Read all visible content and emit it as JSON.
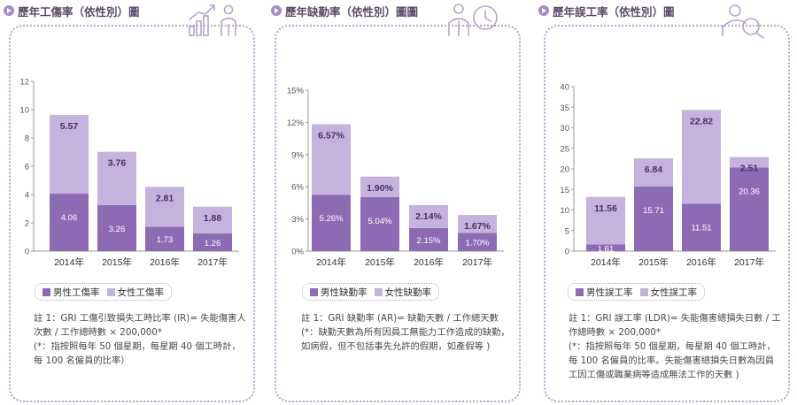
{
  "colors": {
    "male": "#8d6bb4",
    "female": "#c4b3dc",
    "accent": "#a58dc6"
  },
  "panels": [
    {
      "title": "歷年工傷率（依性別）圖",
      "icon": "growth-chart-person-icon",
      "legend": [
        "男性工傷率",
        "女性工傷率"
      ],
      "note": [
        "註 1：GRI 工傷引致損失工時比率 (IR)= 失能傷害人",
        "次數 / 工作總時數 × 200,000*",
        "(*：指按照每年 50 個星期，每星期 40 個工時計，",
        "每 100 名僱員的比率）"
      ]
    },
    {
      "title": "歷年缺勤率（依性別）圖圖",
      "icon": "person-clock-icon",
      "legend": [
        "男性缺勤率",
        "女性缺勤率"
      ],
      "note": [
        "註 1：GRI 缺勤率 (AR)= 缺勤天數 / 工作總天數",
        "(*：缺勤天數為所有因員工無能力工作造成的缺勤，",
        "如病假，但不包括事先允許的假期，如產假等 )"
      ]
    },
    {
      "title": "歷年誤工率（依性別）圖",
      "icon": "person-search-icon",
      "legend": [
        "男性誤工率",
        "女性誤工率"
      ],
      "note": [
        "註 1：GRI 誤工率 (LDR)= 失能傷害總損失日數 / 工",
        "作總時數 × 200,000*",
        "(*：指按照每年 50 個星期，每星期 40 個工時計，",
        "每 100 名僱員的比率。失能傷害總損失日數為因員",
        "工因工傷或職業病等造成無法工作的天數 )"
      ]
    }
  ],
  "chart_data": [
    {
      "type": "bar",
      "stacked": true,
      "categories": [
        "2014年",
        "2015年",
        "2016年",
        "2017年"
      ],
      "series": [
        {
          "name": "男性工傷率",
          "values": [
            4.06,
            3.26,
            1.73,
            1.26
          ],
          "labels": [
            "4.06",
            "3.26",
            "1.73",
            "1.26"
          ]
        },
        {
          "name": "女性工傷率",
          "values": [
            5.57,
            3.76,
            2.81,
            1.88
          ],
          "labels": [
            "5.57",
            "3.76",
            "2.81",
            "1.88"
          ]
        }
      ],
      "ylim": [
        0,
        12
      ],
      "yticks": [
        0,
        2,
        4,
        6,
        8,
        10,
        12
      ],
      "ytick_labels": [
        "0",
        "2",
        "4",
        "6",
        "8",
        "10",
        "12"
      ],
      "grid": false,
      "legend_position": "bottom"
    },
    {
      "type": "bar",
      "stacked": true,
      "categories": [
        "2014年",
        "2015年",
        "2016年",
        "2017年"
      ],
      "series": [
        {
          "name": "男性缺勤率",
          "values": [
            5.26,
            5.04,
            2.15,
            1.7
          ],
          "labels": [
            "5.26%",
            "5.04%",
            "2.15%",
            "1.70%"
          ]
        },
        {
          "name": "女性缺勤率",
          "values": [
            6.57,
            1.9,
            2.14,
            1.67
          ],
          "labels": [
            "6.57%",
            "1.90%",
            "2.14%",
            "1.67%"
          ]
        }
      ],
      "ylim": [
        0,
        15
      ],
      "yticks": [
        0,
        3,
        6,
        9,
        12,
        15
      ],
      "ytick_labels": [
        "0%",
        "3%",
        "6%",
        "9%",
        "12%",
        "15%"
      ],
      "grid": false,
      "legend_position": "bottom"
    },
    {
      "type": "bar",
      "stacked": true,
      "categories": [
        "2014年",
        "2015年",
        "2016年",
        "2017年"
      ],
      "series": [
        {
          "name": "男性誤工率",
          "values": [
            1.61,
            15.71,
            11.51,
            20.36
          ],
          "labels": [
            "1.61",
            "15.71",
            "11.51",
            "20.36"
          ]
        },
        {
          "name": "女性誤工率",
          "values": [
            11.56,
            6.84,
            22.82,
            2.51
          ],
          "labels": [
            "11.56",
            "6.84",
            "22.82",
            "2.51"
          ]
        }
      ],
      "ylim": [
        0,
        40
      ],
      "yticks": [
        0,
        5,
        10,
        15,
        20,
        25,
        30,
        35,
        40
      ],
      "ytick_labels": [
        "0",
        "5",
        "10",
        "15",
        "20",
        "25",
        "30",
        "35",
        "40"
      ],
      "grid": false,
      "legend_position": "bottom"
    }
  ]
}
